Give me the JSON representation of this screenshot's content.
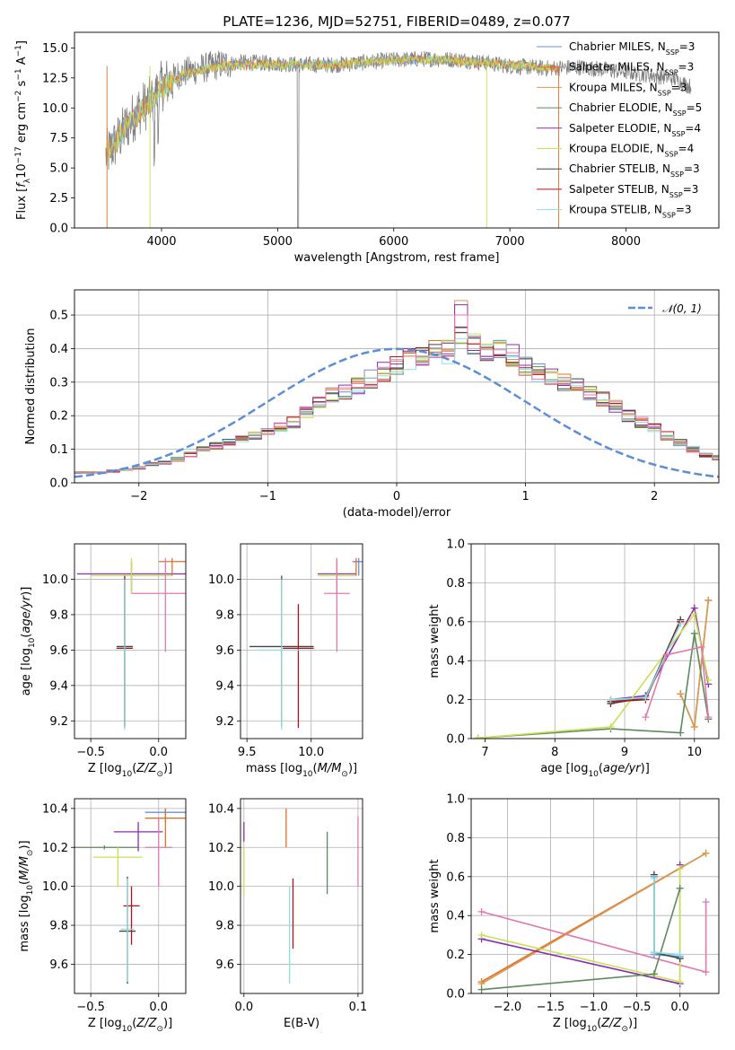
{
  "title": "PLATE=1236, MJD=52751, FIBERID=0489, z=0.077",
  "colors": {
    "chabrier_miles": "#6a8fd8",
    "salpeter_miles": "#e2712a",
    "kroupa_miles": "#d69a55",
    "chabrier_elodie": "#5d8a5d",
    "salpeter_elodie": "#8b2bb0",
    "kroupa_elodie": "#c9e055",
    "chabrier_stelib": "#444444",
    "salpeter_stelib": "#b0141a",
    "kroupa_stelib": "#8ee0e0",
    "extra_pink": "#e07aae",
    "gauss": "#5b8ed6"
  },
  "chart_data": [
    {
      "type": "line",
      "panel": "spectrum",
      "title": "PLATE=1236, MJD=52751, FIBERID=0489, z=0.077",
      "xlabel": "wavelength [Angstrom, rest frame]",
      "ylabel": "Flux [f_λ 10^-17 erg cm^-2 s^-1 A^-1]",
      "xlim": [
        3250,
        8800
      ],
      "ylim": [
        0,
        16.3
      ],
      "xticks": [
        "4000",
        "5000",
        "6000",
        "7000",
        "8000"
      ],
      "yticks": [
        "0.0",
        "2.5",
        "5.0",
        "7.5",
        "10.0",
        "12.5",
        "15.0"
      ],
      "legend_position": "right",
      "legend": [
        {
          "label": "Chabrier MILES, N",
          "sub": "SSP",
          "suffix": "=3"
        },
        {
          "label": "Salpeter MILES, N",
          "sub": "SSP",
          "suffix": "=3"
        },
        {
          "label": "Kroupa MILES, N",
          "sub": "SSP",
          "suffix": "=3"
        },
        {
          "label": "Chabrier ELODIE, N",
          "sub": "SSP",
          "suffix": "=5"
        },
        {
          "label": "Salpeter ELODIE, N",
          "sub": "SSP",
          "suffix": "=4"
        },
        {
          "label": "Kroupa ELODIE, N",
          "sub": "SSP",
          "suffix": "=4"
        },
        {
          "label": "Chabrier STELIB, N",
          "sub": "SSP",
          "suffix": "=3"
        },
        {
          "label": "Salpeter STELIB, N",
          "sub": "SSP",
          "suffix": "=3"
        },
        {
          "label": "Kroupa STELIB, N",
          "sub": "SSP",
          "suffix": "=3"
        }
      ],
      "data_continuum": [
        [
          3520,
          6.0
        ],
        [
          3600,
          7.0
        ],
        [
          3700,
          8.5
        ],
        [
          3800,
          9.8
        ],
        [
          3900,
          10.5
        ],
        [
          4000,
          11.8
        ],
        [
          4150,
          12.8
        ],
        [
          4300,
          13.2
        ],
        [
          4500,
          13.6
        ],
        [
          4700,
          13.8
        ],
        [
          5000,
          13.7
        ],
        [
          5200,
          13.6
        ],
        [
          5500,
          13.6
        ],
        [
          6000,
          14.0
        ],
        [
          6300,
          14.1
        ],
        [
          6600,
          14.0
        ],
        [
          7000,
          13.5
        ],
        [
          7300,
          13.3
        ],
        [
          7600,
          13.4
        ],
        [
          8000,
          13.0
        ],
        [
          8400,
          12.5
        ],
        [
          8550,
          11.8
        ]
      ],
      "model_continuum": [
        [
          3520,
          6.2
        ],
        [
          3700,
          8.4
        ],
        [
          3850,
          9.9
        ],
        [
          4000,
          11.6
        ],
        [
          4200,
          12.8
        ],
        [
          4500,
          13.5
        ],
        [
          5000,
          13.6
        ],
        [
          5500,
          13.6
        ],
        [
          6000,
          14.0
        ],
        [
          6500,
          14.0
        ],
        [
          7000,
          13.6
        ],
        [
          7400,
          13.3
        ]
      ]
    },
    {
      "type": "step",
      "panel": "residual histogram",
      "xlabel": "(data-model)/error",
      "ylabel": "Normed distribution",
      "xlim": [
        -2.5,
        2.5
      ],
      "ylim": [
        0,
        0.575
      ],
      "xticks": [
        "−2",
        "−1",
        "0",
        "1",
        "2"
      ],
      "yticks": [
        "0.0",
        "0.1",
        "0.2",
        "0.3",
        "0.4",
        "0.5"
      ],
      "legend_position": "top-right",
      "legend": "𝒩(0, 1)",
      "bin_width": 0.1,
      "bin_start": -2.5,
      "histogram_reference": [
        0.03,
        0.03,
        0.03,
        0.035,
        0.04,
        0.045,
        0.055,
        0.06,
        0.07,
        0.085,
        0.1,
        0.11,
        0.12,
        0.13,
        0.14,
        0.15,
        0.165,
        0.18,
        0.21,
        0.24,
        0.26,
        0.27,
        0.29,
        0.31,
        0.33,
        0.35,
        0.37,
        0.37,
        0.39,
        0.39,
        0.43,
        0.41,
        0.39,
        0.4,
        0.38,
        0.35,
        0.33,
        0.32,
        0.3,
        0.29,
        0.27,
        0.25,
        0.23,
        0.2,
        0.18,
        0.165,
        0.14,
        0.12,
        0.1,
        0.085,
        0.075,
        0.065,
        0.055,
        0.045,
        0.04,
        0.035,
        0.03
      ],
      "gaussian": "N(0,1) pdf"
    },
    {
      "type": "scatter",
      "panel": "Z vs age",
      "xlabel": "Z [log10(Z/Z⊙)]",
      "ylabel": "age [log10(age/yr)]",
      "xlim": [
        -0.62,
        0.2
      ],
      "ylim": [
        9.1,
        10.2
      ],
      "xticks": [
        "−0.5",
        "0.0"
      ],
      "yticks": [
        "9.2",
        "9.4",
        "9.6",
        "9.8",
        "10.0"
      ],
      "points": [
        {
          "x": -0.2,
          "y": 10.03,
          "xerr": 0.4,
          "yerr": [
            0.1,
            0.07
          ],
          "c": "salpeter_elodie"
        },
        {
          "x": -0.2,
          "y": 10.02,
          "xerr": 0.3,
          "yerr": [
            0.1,
            0.1
          ],
          "c": "kroupa_elodie"
        },
        {
          "x": 0.1,
          "y": 10.1,
          "xerr": 0.1,
          "yerr": [
            0.08,
            0.02
          ],
          "c": "salpeter_miles"
        },
        {
          "x": 0.05,
          "y": 9.92,
          "xerr": 0.25,
          "yerr": [
            0.33,
            0.2
          ],
          "c": "extra_pink"
        },
        {
          "x": -0.25,
          "y": 9.62,
          "xerr": 0.06,
          "yerr": [
            0.45,
            0.4
          ],
          "c": "chabrier_stelib"
        },
        {
          "x": -0.25,
          "y": 9.61,
          "xerr": 0.06,
          "yerr": [
            0.45,
            0.4
          ],
          "c": "salpeter_stelib"
        },
        {
          "x": -0.25,
          "y": 9.6,
          "xerr": 0.04,
          "yerr": [
            0.45,
            0.4
          ],
          "c": "kroupa_stelib"
        }
      ]
    },
    {
      "type": "scatter",
      "panel": "mass vs age",
      "xlabel": "mass [log10(M/M⊙)]",
      "ylabel": "",
      "xlim": [
        9.45,
        10.4
      ],
      "ylim": [
        9.1,
        10.2
      ],
      "xticks": [
        "9.5",
        "10.0"
      ],
      "yticks": [
        "9.2",
        "9.4",
        "9.6",
        "9.8",
        "10.0"
      ],
      "points": [
        {
          "x": 10.2,
          "y": 10.03,
          "xerr": 0.15,
          "yerr": [
            0.1,
            0.07
          ],
          "c": "salpeter_elodie"
        },
        {
          "x": 10.2,
          "y": 10.02,
          "xerr": 0.15,
          "yerr": [
            0.1,
            0.1
          ],
          "c": "kroupa_elodie"
        },
        {
          "x": 10.35,
          "y": 10.1,
          "xerr": 0.03,
          "yerr": [
            0.08,
            0.02
          ],
          "c": "salpeter_miles"
        },
        {
          "x": 10.37,
          "y": 10.1,
          "xerr": 0.03,
          "yerr": [
            0.08,
            0.02
          ],
          "c": "chabrier_miles"
        },
        {
          "x": 10.2,
          "y": 9.92,
          "xerr": 0.1,
          "yerr": [
            0.33,
            0.2
          ],
          "c": "extra_pink"
        },
        {
          "x": 9.77,
          "y": 9.62,
          "xerr": 0.25,
          "yerr": [
            0.45,
            0.4
          ],
          "c": "chabrier_stelib"
        },
        {
          "x": 9.9,
          "y": 9.61,
          "xerr": 0.12,
          "yerr": [
            0.45,
            0.25
          ],
          "c": "salpeter_stelib"
        },
        {
          "x": 9.77,
          "y": 9.6,
          "xerr": 0.2,
          "yerr": [
            0.45,
            0.4
          ],
          "c": "kroupa_stelib"
        }
      ]
    },
    {
      "type": "line",
      "panel": "mass weight vs age",
      "xlabel": "age [log10(age/yr)]",
      "ylabel": "mass weight",
      "xlim": [
        6.8,
        10.35
      ],
      "ylim": [
        0,
        1
      ],
      "xticks": [
        "7",
        "8",
        "9",
        "10"
      ],
      "yticks": [
        "0.0",
        "0.2",
        "0.4",
        "0.6",
        "0.8",
        "1.0"
      ],
      "series": [
        {
          "c": "chabrier_miles",
          "x": [
            8.8,
            9.3,
            9.8
          ],
          "y": [
            0.19,
            0.21,
            0.6
          ]
        },
        {
          "c": "salpeter_miles",
          "x": [
            9.8,
            10.0,
            10.2
          ],
          "y": [
            0.23,
            0.06,
            0.71
          ]
        },
        {
          "c": "kroupa_miles",
          "x": [
            9.8,
            10.0,
            10.2
          ],
          "y": [
            0.23,
            0.06,
            0.71
          ]
        },
        {
          "c": "chabrier_elodie",
          "x": [
            6.9,
            8.8,
            9.8,
            10.0,
            10.2
          ],
          "y": [
            0.003,
            0.05,
            0.03,
            0.54,
            0.1
          ]
        },
        {
          "c": "salpeter_elodie",
          "x": [
            8.8,
            9.3,
            10.0,
            10.2
          ],
          "y": [
            0.2,
            0.22,
            0.67,
            0.28
          ]
        },
        {
          "c": "kroupa_elodie",
          "x": [
            6.9,
            8.8,
            10.0,
            10.2
          ],
          "y": [
            0.003,
            0.06,
            0.64,
            0.3
          ]
        },
        {
          "c": "chabrier_stelib",
          "x": [
            8.8,
            9.3,
            9.8
          ],
          "y": [
            0.18,
            0.21,
            0.61
          ]
        },
        {
          "c": "salpeter_stelib",
          "x": [
            8.8,
            9.3,
            9.8
          ],
          "y": [
            0.19,
            0.2,
            0.6
          ]
        },
        {
          "c": "kroupa_stelib",
          "x": [
            8.8,
            9.3,
            9.8
          ],
          "y": [
            0.2,
            0.21,
            0.59
          ]
        },
        {
          "c": "extra_pink",
          "x": [
            9.3,
            9.6,
            10.1,
            10.2
          ],
          "y": [
            0.11,
            0.43,
            0.47,
            0.11
          ]
        }
      ]
    },
    {
      "type": "scatter",
      "panel": "Z vs mass",
      "xlabel": "Z [log10(Z/Z⊙)]",
      "ylabel": "mass [log10(M/M⊙)]",
      "xlim": [
        -0.62,
        0.2
      ],
      "ylim": [
        9.45,
        10.45
      ],
      "xticks": [
        "−0.5",
        "0.0"
      ],
      "yticks": [
        "9.6",
        "9.8",
        "10.0",
        "10.2",
        "10.4"
      ],
      "points": [
        {
          "x": 0.05,
          "y": 10.38,
          "xerr": 0.15,
          "yerr": [
            0.05,
            0.02
          ],
          "c": "chabrier_miles"
        },
        {
          "x": 0.05,
          "y": 10.35,
          "xerr": 0.15,
          "yerr": [
            0.15,
            0.05
          ],
          "c": "salpeter_miles"
        },
        {
          "x": -0.4,
          "y": 10.2,
          "xerr": 0.25,
          "yerr": [
            0.01,
            0.01
          ],
          "c": "chabrier_elodie"
        },
        {
          "x": -0.15,
          "y": 10.28,
          "xerr": 0.18,
          "yerr": [
            0.1,
            0.05
          ],
          "c": "salpeter_elodie"
        },
        {
          "x": -0.3,
          "y": 10.15,
          "xerr": 0.18,
          "yerr": [
            0.15,
            0.05
          ],
          "c": "kroupa_elodie"
        },
        {
          "x": 0.0,
          "y": 10.2,
          "xerr": 0.1,
          "yerr": [
            0.2,
            0.15
          ],
          "c": "extra_pink"
        },
        {
          "x": -0.23,
          "y": 9.77,
          "xerr": 0.06,
          "yerr": [
            0.27,
            0.28
          ],
          "c": "chabrier_stelib"
        },
        {
          "x": -0.2,
          "y": 9.9,
          "xerr": 0.06,
          "yerr": [
            0.2,
            0.1
          ],
          "c": "salpeter_stelib"
        },
        {
          "x": -0.23,
          "y": 9.78,
          "xerr": 0.05,
          "yerr": [
            0.27,
            0.26
          ],
          "c": "kroupa_stelib"
        }
      ]
    },
    {
      "type": "scatter",
      "panel": "E(B-V) vs mass",
      "xlabel": "E(B-V)",
      "ylabel": "",
      "xlim": [
        -0.003,
        0.104
      ],
      "ylim": [
        9.45,
        10.45
      ],
      "xticks": [
        "0.0",
        "0.1"
      ],
      "yticks": [
        "9.6",
        "9.8",
        "10.0",
        "10.2",
        "10.4"
      ],
      "points": [
        {
          "x": 0.0,
          "y": 10.28,
          "yerr": [
            0.05,
            0.05
          ],
          "c": "salpeter_elodie"
        },
        {
          "x": 0.0,
          "y": 10.1,
          "yerr": [
            0.15,
            0.1
          ],
          "c": "kroupa_elodie"
        },
        {
          "x": 0.037,
          "y": 10.3,
          "yerr": [
            0.1,
            0.1
          ],
          "c": "salpeter_miles"
        },
        {
          "x": 0.04,
          "y": 9.75,
          "yerr": [
            0.25,
            0.25
          ],
          "c": "kroupa_stelib"
        },
        {
          "x": 0.043,
          "y": 9.86,
          "yerr": [
            0.18,
            0.18
          ],
          "c": "salpeter_stelib"
        },
        {
          "x": 0.073,
          "y": 10.12,
          "yerr": [
            0.16,
            0.16
          ],
          "c": "chabrier_elodie"
        },
        {
          "x": 0.1,
          "y": 10.18,
          "yerr": [
            0.18,
            0.18
          ],
          "c": "extra_pink"
        }
      ]
    },
    {
      "type": "line",
      "panel": "mass weight vs Z",
      "xlabel": "Z [log10(Z/Z⊙)]",
      "ylabel": "mass weight",
      "xlim": [
        -2.42,
        0.45
      ],
      "ylim": [
        0,
        1
      ],
      "xticks": [
        "−2.0",
        "−1.5",
        "−1.0",
        "−0.5",
        "0.0"
      ],
      "yticks": [
        "0.0",
        "0.2",
        "0.4",
        "0.6",
        "0.8",
        "1.0"
      ],
      "series": [
        {
          "c": "salpeter_miles",
          "x": [
            -2.3,
            0.3
          ],
          "y": [
            0.06,
            0.72
          ]
        },
        {
          "c": "kroupa_miles",
          "x": [
            -2.3,
            0.3
          ],
          "y": [
            0.05,
            0.72
          ]
        },
        {
          "c": "extra_pink",
          "x": [
            -2.3,
            0.3,
            0.3
          ],
          "y": [
            0.42,
            0.11,
            0.47
          ]
        },
        {
          "c": "salpeter_elodie",
          "x": [
            -2.3,
            0.0,
            0.0
          ],
          "y": [
            0.28,
            0.05,
            0.66
          ]
        },
        {
          "c": "kroupa_elodie",
          "x": [
            -2.3,
            0.0,
            0.0
          ],
          "y": [
            0.3,
            0.06,
            0.64
          ]
        },
        {
          "c": "chabrier_elodie",
          "x": [
            -2.3,
            -0.3,
            0.0
          ],
          "y": [
            0.02,
            0.1,
            0.54
          ]
        },
        {
          "c": "chabrier_miles",
          "x": [
            -0.3,
            -0.3,
            0.0
          ],
          "y": [
            0.6,
            0.2,
            0.19
          ]
        },
        {
          "c": "chabrier_stelib",
          "x": [
            -0.3,
            -0.3,
            0.0
          ],
          "y": [
            0.61,
            0.21,
            0.18
          ]
        },
        {
          "c": "kroupa_stelib",
          "x": [
            -0.3,
            -0.3,
            0.0
          ],
          "y": [
            0.59,
            0.21,
            0.2
          ]
        }
      ]
    }
  ]
}
